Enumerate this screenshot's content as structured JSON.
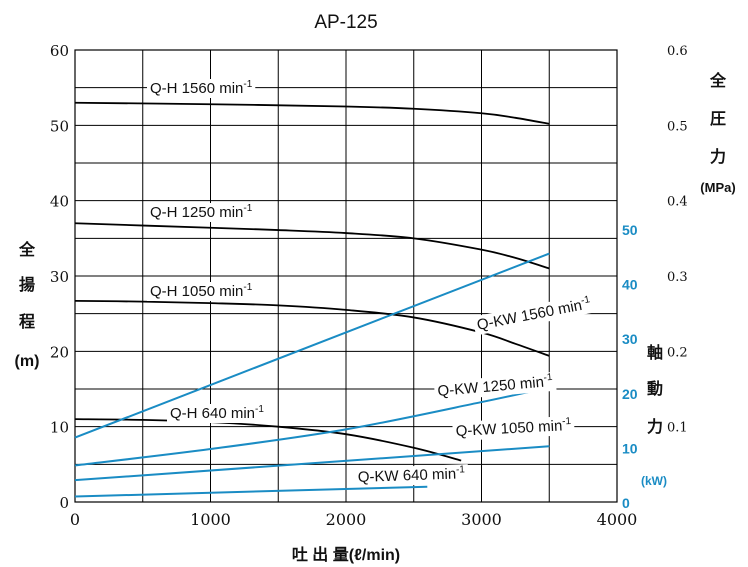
{
  "chart_data": {
    "type": "line",
    "title": "AP-125",
    "xlabel": "吐 出 量(ℓ/min)",
    "ylabel_left": [
      "全",
      "揚",
      "程",
      "(m)"
    ],
    "ylabel_pressure": [
      "全",
      "圧",
      "力",
      "(MPa)"
    ],
    "ylabel_power": [
      "軸",
      "動",
      "力"
    ],
    "power_unit": "(kW)",
    "xlim": [
      0,
      4000
    ],
    "ylim": [
      0,
      60
    ],
    "pressure_lim": [
      0,
      0.6
    ],
    "power_lim": [
      0,
      50
    ],
    "x_ticks": [
      "0",
      "1000",
      "2000",
      "3000",
      "4000"
    ],
    "y_ticks": [
      "0",
      "10",
      "20",
      "30",
      "40",
      "50",
      "60"
    ],
    "pressure_ticks": [
      "0.1",
      "0.2",
      "0.3",
      "0.4",
      "0.5",
      "0.6"
    ],
    "power_ticks": [
      "0",
      "10",
      "20",
      "30",
      "40",
      "50"
    ],
    "grid": true,
    "head_series": [
      {
        "name": "Q-H 1560 min",
        "sup": "-1",
        "color": "#000000",
        "x": [
          0,
          1000,
          2000,
          2500,
          3000,
          3250,
          3500
        ],
        "y": [
          53.0,
          52.8,
          52.5,
          52.2,
          51.6,
          51.0,
          50.2
        ]
      },
      {
        "name": "Q-H 1250 min",
        "sup": "-1",
        "color": "#000000",
        "x": [
          0,
          1000,
          1500,
          2000,
          2500,
          3000,
          3250,
          3500
        ],
        "y": [
          37.0,
          36.4,
          36.1,
          35.7,
          35.0,
          33.5,
          32.4,
          31.0
        ]
      },
      {
        "name": "Q-H 1050 min",
        "sup": "-1",
        "color": "#000000",
        "x": [
          0,
          500,
          1000,
          1500,
          2000,
          2500,
          3000,
          3250,
          3500
        ],
        "y": [
          26.7,
          26.6,
          26.4,
          26.1,
          25.5,
          24.5,
          22.5,
          21.0,
          19.4
        ]
      },
      {
        "name": "Q-H 640 min",
        "sup": "-1",
        "color": "#000000",
        "x": [
          0,
          500,
          1000,
          1500,
          2000,
          2500,
          2850
        ],
        "y": [
          11.0,
          10.9,
          10.6,
          10.0,
          9.0,
          7.2,
          5.5
        ]
      }
    ],
    "power_series": [
      {
        "name": "Q-KW 1560 min",
        "sup": "-1",
        "color": "#1a8cc4",
        "x": [
          0,
          3500
        ],
        "y": [
          11.8,
          45.5
        ]
      },
      {
        "name": "Q-KW 1250 min",
        "sup": "-1",
        "color": "#1a8cc4",
        "x": [
          0,
          1000,
          2000,
          3000,
          3500
        ],
        "y": [
          6.7,
          9.7,
          13.3,
          18.3,
          21.0
        ]
      },
      {
        "name": "Q-KW 1050 min",
        "sup": "-1",
        "color": "#1a8cc4",
        "x": [
          0,
          3500
        ],
        "y": [
          4.0,
          10.2
        ]
      },
      {
        "name": "Q-KW 640 min",
        "sup": "-1",
        "color": "#1a8cc4",
        "x": [
          0,
          2600
        ],
        "y": [
          1.0,
          2.8
        ]
      }
    ]
  }
}
